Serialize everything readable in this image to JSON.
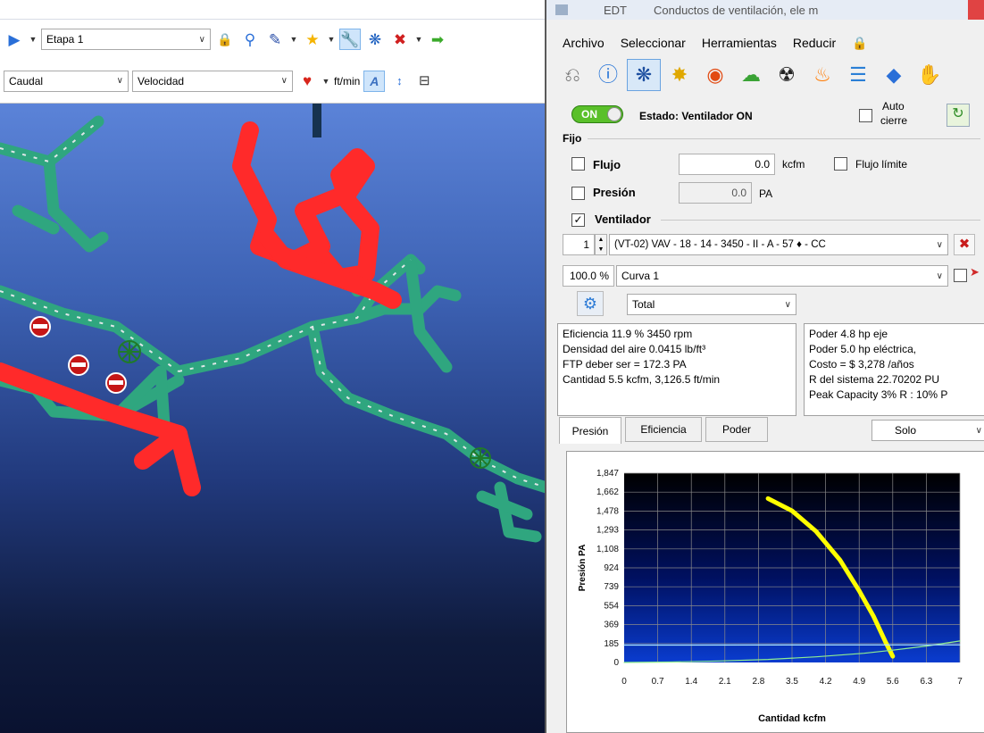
{
  "left": {
    "toolbar1": {
      "stage_select": "Etapa 1"
    },
    "toolbar2": {
      "param_select": "Caudal",
      "mode_select": "Velocidad",
      "units": "ft/min"
    }
  },
  "panel": {
    "title": "Conductos de ventilación, ele m",
    "title_prefix": "EDT",
    "menu": {
      "archivo": "Archivo",
      "seleccionar": "Seleccionar",
      "herramientas": "Herramientas",
      "reducir": "Reducir"
    },
    "status": {
      "toggle": "ON",
      "label": "Estado: Ventilador ON",
      "auto_close_1": "Auto",
      "auto_close_2": "cierre"
    },
    "fixed": {
      "group": "Fijo",
      "flow_label": "Flujo",
      "flow_value": "0.0",
      "flow_unit": "kcfm",
      "flow_limit": "Flujo límite",
      "pressure_label": "Presión",
      "pressure_value": "0.0",
      "pressure_unit": "PA"
    },
    "fan": {
      "group": "Ventilador",
      "index": "1",
      "name": "(VT-02) VAV  -  18  -  14  -  3450 - II - A -  57 ♦ - CC",
      "percent": "100.0 %",
      "curve": "Curva 1",
      "mode": "Total"
    },
    "info_left": [
      "Eficiencia 11.9 %  3450 rpm",
      "Densidad del aire 0.0415 lb/ft³",
      "FTP deber ser = 172.3 PA",
      "Cantidad 5.5 kcfm, 3,126.5 ft/min"
    ],
    "info_right": [
      "Poder 4.8 hp eje",
      "Poder 5.0 hp eléctrica,",
      "Costo = $ 3,278 /años",
      "R del sistema 22.70202 PU",
      "Peak Capacity 3% R : 10% P"
    ],
    "tabs": [
      "Presión",
      "Eficiencia",
      "Poder"
    ],
    "view_select": "Solo"
  },
  "chart_data": {
    "type": "line",
    "xlabel": "Cantidad kcfm",
    "ylabel": "Presión PA",
    "xlim": [
      0,
      7
    ],
    "ylim": [
      0,
      1847
    ],
    "xticks": [
      "0",
      "0.7",
      "1.4",
      "2.1",
      "2.8",
      "3.5",
      "4.2",
      "4.9",
      "5.6",
      "6.3",
      "7"
    ],
    "yticks": [
      "0",
      "185",
      "369",
      "554",
      "739",
      "924",
      "1,108",
      "1,293",
      "1,478",
      "1,662",
      "1,847"
    ],
    "grid": true,
    "series": [
      {
        "color": "#ffff00",
        "x": [
          3.0,
          3.5,
          4.0,
          4.5,
          4.9,
          5.2,
          5.45,
          5.6
        ],
        "y": [
          1600,
          1480,
          1280,
          1000,
          700,
          450,
          200,
          60
        ]
      },
      {
        "color": "#90ee90",
        "x": [
          0,
          1.0,
          2.0,
          3.0,
          4.0,
          5.0,
          5.6,
          6.3,
          7.0
        ],
        "y": [
          0,
          4,
          15,
          30,
          55,
          90,
          120,
          160,
          210
        ]
      },
      {
        "color": "#b0e8ff",
        "x": [
          0,
          7
        ],
        "y": [
          170,
          172
        ]
      }
    ]
  }
}
